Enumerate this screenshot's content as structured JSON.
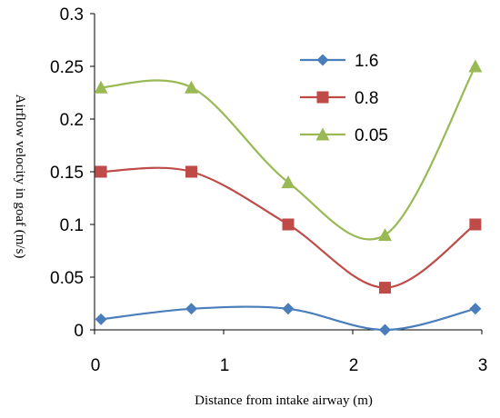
{
  "chart_data": {
    "type": "line",
    "xlabel": "Distance from intake airway (m)",
    "ylabel": "Airflow velocity in goaf (m/s)",
    "xlim": [
      0,
      3
    ],
    "ylim": [
      0,
      0.3
    ],
    "x_ticks": [
      "0",
      "1",
      "2",
      "3"
    ],
    "y_ticks": [
      "0",
      "0.05",
      "0.1",
      "0.15",
      "0.2",
      "0.25",
      "0.3"
    ],
    "legend_position": "top-right",
    "smooth_lines": true,
    "series": [
      {
        "name": "1.6",
        "color": "#4a7ebb",
        "marker": "diamond",
        "x": [
          0.05,
          0.75,
          1.5,
          2.25,
          2.95
        ],
        "y": [
          0.01,
          0.02,
          0.02,
          0.0,
          0.02
        ]
      },
      {
        "name": "0.8",
        "color": "#be4b48",
        "marker": "square",
        "x": [
          0.05,
          0.75,
          1.5,
          2.25,
          2.95
        ],
        "y": [
          0.15,
          0.15,
          0.1,
          0.04,
          0.1
        ]
      },
      {
        "name": "0.05",
        "color": "#98b954",
        "marker": "triangle",
        "x": [
          0.05,
          0.75,
          1.5,
          2.25,
          2.95
        ],
        "y": [
          0.23,
          0.23,
          0.14,
          0.09,
          0.25
        ]
      }
    ]
  }
}
